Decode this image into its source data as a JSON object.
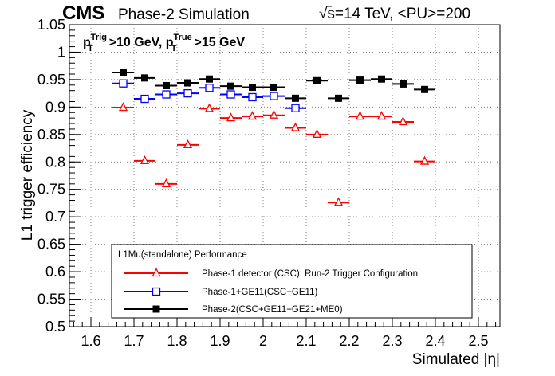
{
  "header": {
    "experiment": "CMS",
    "subtitle": "Phase-2 Simulation",
    "energy": "√s=14 TeV, <PU>=200"
  },
  "cut_label": {
    "pt_trig_base": "p",
    "pt_trig_sup": "Trig",
    "pt_trig_sub": "T",
    "pt_trig_rest": ">10 GeV, ",
    "pt_true_base": "p",
    "pt_true_sup": "True",
    "pt_true_sub": "T",
    "pt_true_rest": ">15 GeV"
  },
  "colors": {
    "phase1": "#ff0000",
    "phase1_ge11": "#0000ff",
    "phase2": "#000000",
    "grid": "#7f7f7f"
  },
  "chart_data": {
    "type": "scatter",
    "title": "",
    "xlabel": "Simulated |η|",
    "ylabel": "L1 trigger efficiency",
    "xlim": [
      1.55,
      2.55
    ],
    "ylim": [
      0.5,
      1.05
    ],
    "xticks": [
      "1.6",
      "1.7",
      "1.8",
      "1.9",
      "2",
      "2.1",
      "2.2",
      "2.3",
      "2.4",
      "2.5"
    ],
    "yticks": [
      "0.5",
      "0.55",
      "0.6",
      "0.65",
      "0.7",
      "0.75",
      "0.8",
      "0.85",
      "0.9",
      "0.95",
      "1",
      "1.05"
    ],
    "grid": true,
    "legend_title": "L1Mu(standalone) Performance",
    "legend_position": "bottom-center",
    "bin_half_width": 0.025,
    "series": [
      {
        "name": "Phase-1 detector (CSC): Run-2 Trigger Configuration",
        "marker": "open-triangle",
        "color": "#ff0000",
        "x": [
          1.675,
          1.725,
          1.775,
          1.825,
          1.875,
          1.925,
          1.975,
          2.025,
          2.075,
          2.125,
          2.175,
          2.225,
          2.275,
          2.325,
          2.375
        ],
        "y": [
          0.899,
          0.802,
          0.76,
          0.831,
          0.897,
          0.88,
          0.883,
          0.885,
          0.862,
          0.85,
          0.726,
          0.883,
          0.883,
          0.873,
          0.801
        ]
      },
      {
        "name": "Phase-1+GE11(CSC+GE11)",
        "marker": "open-square",
        "color": "#0000ff",
        "x": [
          1.675,
          1.725,
          1.775,
          1.825,
          1.875,
          1.925,
          1.975,
          2.025,
          2.075
        ],
        "y": [
          0.943,
          0.915,
          0.923,
          0.925,
          0.935,
          0.923,
          0.918,
          0.92,
          0.898
        ]
      },
      {
        "name": "Phase-2(CSC+GE11+GE21+ME0)",
        "marker": "filled-square",
        "color": "#000000",
        "x": [
          1.675,
          1.725,
          1.775,
          1.825,
          1.875,
          1.925,
          1.975,
          2.025,
          2.075,
          2.125,
          2.175,
          2.225,
          2.275,
          2.325,
          2.375
        ],
        "y": [
          0.963,
          0.953,
          0.939,
          0.944,
          0.951,
          0.938,
          0.936,
          0.936,
          0.916,
          0.948,
          0.916,
          0.949,
          0.951,
          0.942,
          0.932
        ]
      }
    ]
  }
}
